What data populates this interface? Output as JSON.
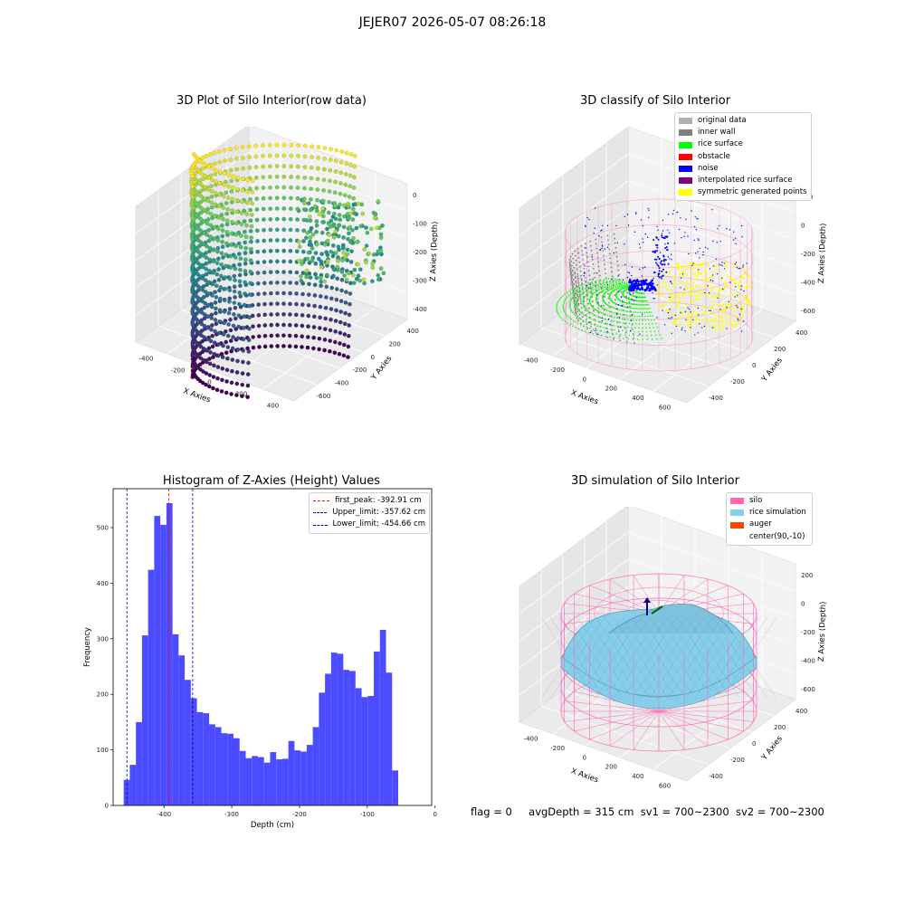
{
  "page": {
    "title": "JEJER07 2026-05-07 08:26:18"
  },
  "colors": {
    "silo": "#ff69b4",
    "rice": "#87ceeb",
    "auger": "#ff4500",
    "original": "#b0b0b0",
    "inner_wall": "#808080",
    "rice_surface": "#00ff00",
    "obstacle": "#ff0000",
    "noise": "#0000ff",
    "interpolated": "#800080",
    "symmetric": "#ffff00",
    "hist_bar": "#4b4bff"
  },
  "panels": {
    "raw": {
      "title": "3D Plot of Silo Interior(row data)",
      "xlabel": "X Axies",
      "ylabel": "Y Axies",
      "zlabel": "Z Axies (Depth)",
      "xticks": [
        "-400",
        "-200",
        "0",
        "200",
        "400"
      ],
      "yticks": [
        "400",
        "200",
        "0",
        "-200",
        "-400",
        "-600"
      ],
      "zticks": [
        "0",
        "-100",
        "-200",
        "-300",
        "-400"
      ]
    },
    "classify": {
      "title": "3D classify of Silo Interior",
      "xlabel": "X Axies",
      "ylabel": "Y Axies",
      "zlabel": "Z Axies (Depth)",
      "xticks": [
        "-400",
        "-200",
        "0",
        "200",
        "400",
        "600"
      ],
      "yticks": [
        "400",
        "200",
        "0",
        "-200",
        "-400"
      ],
      "zticks": [
        "200",
        "0",
        "-200",
        "-400",
        "-600"
      ],
      "legend": [
        {
          "label": "original data",
          "color": "#b0b0b0"
        },
        {
          "label": "inner wall",
          "color": "#808080"
        },
        {
          "label": "rice surface",
          "color": "#00ff00"
        },
        {
          "label": "obstacle",
          "color": "#ff0000"
        },
        {
          "label": "noise",
          "color": "#0000ff"
        },
        {
          "label": "interpolated rice surface",
          "color": "#800080"
        },
        {
          "label": "symmetric generated points",
          "color": "#ffff00"
        }
      ]
    },
    "simulation": {
      "title": "3D simulation of Silo Interior",
      "xlabel": "X Axies",
      "ylabel": "Y Axies",
      "zlabel": "Z Axies (Depth)",
      "xticks": [
        "-400",
        "-200",
        "0",
        "200",
        "400",
        "600"
      ],
      "yticks": [
        "400",
        "200",
        "0",
        "-200",
        "-400"
      ],
      "zticks": [
        "200",
        "0",
        "-200",
        "-400",
        "-600"
      ],
      "legend": [
        {
          "label": "silo",
          "color": "#ff69b4"
        },
        {
          "label": "rice simulation",
          "color": "#87ceeb"
        },
        {
          "label": "auger",
          "color": "#ff4500"
        },
        {
          "label": "center(90,-10)",
          "color": ""
        }
      ]
    }
  },
  "status": {
    "flag": "flag = 0",
    "avg_depth": "avgDepth = 315 cm",
    "sv1": "sv1 = 700~2300",
    "sv2": "sv2 = 700~2300"
  },
  "chart_data": {
    "type": "bar",
    "title": "Histogram of Z-Axies (Height) Values",
    "xlabel": "Depth (cm)",
    "ylabel": "Frequency",
    "xlim": [
      -475,
      -5
    ],
    "ylim": [
      0,
      570
    ],
    "xticks": [
      -400,
      -300,
      -200,
      -100,
      0
    ],
    "yticks": [
      0,
      100,
      200,
      300,
      400,
      500
    ],
    "bin_start": -459.4,
    "bin_width": 9.0,
    "values": [
      46,
      73,
      150,
      306,
      424,
      521,
      505,
      544,
      308,
      270,
      226,
      193,
      168,
      166,
      146,
      141,
      130,
      129,
      121,
      98,
      85,
      89,
      87,
      77,
      96,
      83,
      84,
      116,
      99,
      97,
      109,
      141,
      203,
      237,
      275,
      273,
      244,
      242,
      211,
      195,
      197,
      277,
      316,
      239,
      63
    ],
    "vlines": [
      {
        "label": "first_peak: -392.91 cm",
        "x": -392.91,
        "color": "#ff0000"
      },
      {
        "label": "Upper_limit: -357.62 cm",
        "x": -357.62,
        "color": "#0000aa"
      },
      {
        "label": "Lower_limit: -454.66 cm",
        "x": -454.66,
        "color": "#0000aa"
      }
    ]
  }
}
